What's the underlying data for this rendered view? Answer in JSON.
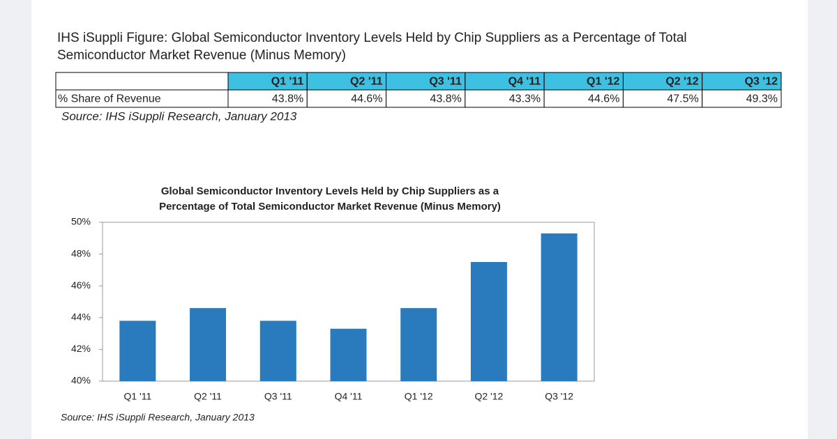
{
  "figure_title": [
    "IHS iSuppli Figure: Global Semiconductor Inventory Levels Held by Chip Suppliers as a Percentage of Total",
    "Semiconductor Market Revenue (Minus Memory)"
  ],
  "table": {
    "columns": [
      "Q1 '11",
      "Q2 '11",
      "Q3 '11",
      "Q4 '11",
      "Q1 '12",
      "Q2 '12",
      "Q3 '12"
    ],
    "rows": [
      {
        "label": "% Share of Revenue",
        "cells": [
          "43.8%",
          "44.6%",
          "43.8%",
          "43.3%",
          "44.6%",
          "47.5%",
          "49.3%"
        ]
      }
    ]
  },
  "table_source": "Source: IHS iSuppli Research, January 2013",
  "chart_data": {
    "type": "bar",
    "title": [
      "Global Semiconductor Inventory Levels Held by Chip Suppliers as a",
      "Percentage of Total Semiconductor Market Revenue (Minus Memory)"
    ],
    "categories": [
      "Q1 '11",
      "Q2 '11",
      "Q3 '11",
      "Q4 '11",
      "Q1 '12",
      "Q2 '12",
      "Q3 '12"
    ],
    "values": [
      43.8,
      44.6,
      43.8,
      43.3,
      44.6,
      47.5,
      49.3
    ],
    "color": "#2a7bbd",
    "ylim": [
      40,
      50
    ],
    "yticks": [
      {
        "value": 40,
        "label": "40%"
      },
      {
        "value": 42,
        "label": "42%"
      },
      {
        "value": 44,
        "label": "44%"
      },
      {
        "value": 46,
        "label": "46%"
      },
      {
        "value": 48,
        "label": "48%"
      },
      {
        "value": 50,
        "label": "50%"
      }
    ],
    "grid": false,
    "source": "Source: IHS iSuppli Research, January 2013"
  }
}
